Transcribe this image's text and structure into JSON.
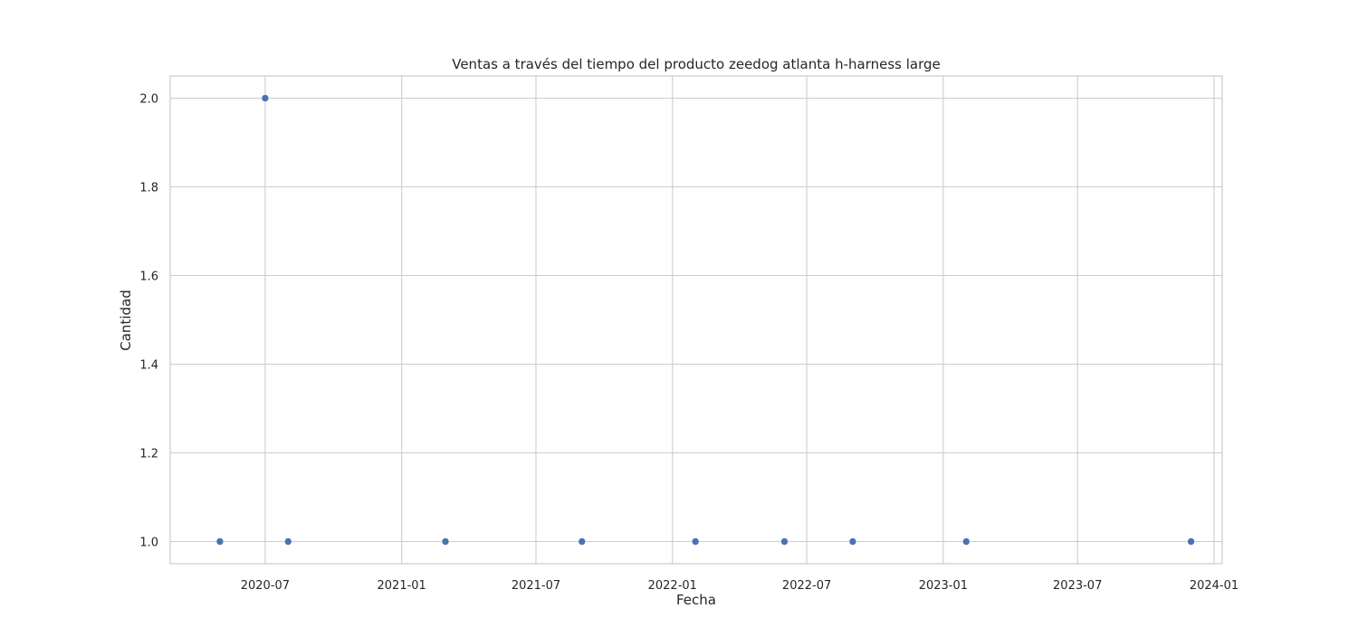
{
  "chart_data": {
    "type": "scatter",
    "title": "Ventas a través del tiempo del producto zeedog atlanta h-harness large",
    "xlabel": "Fecha",
    "ylabel": "Cantidad",
    "x_axis_type": "date",
    "xlim": [
      "2020-02-24",
      "2024-01-12"
    ],
    "ylim": [
      0.95,
      2.05
    ],
    "x_ticks": [
      "2020-07",
      "2021-01",
      "2021-07",
      "2022-01",
      "2022-07",
      "2023-01",
      "2023-07",
      "2024-01"
    ],
    "y_ticks": [
      "1.0",
      "1.2",
      "1.4",
      "1.6",
      "1.8",
      "2.0"
    ],
    "grid": true,
    "legend": "none",
    "marker_color": "#4c72b0",
    "points": [
      {
        "x": "2020-05-01",
        "y": 1
      },
      {
        "x": "2020-07-01",
        "y": 2
      },
      {
        "x": "2020-08-01",
        "y": 1
      },
      {
        "x": "2021-03-01",
        "y": 1
      },
      {
        "x": "2021-09-01",
        "y": 1
      },
      {
        "x": "2022-02-01",
        "y": 1
      },
      {
        "x": "2022-06-01",
        "y": 1
      },
      {
        "x": "2022-09-01",
        "y": 1
      },
      {
        "x": "2023-02-01",
        "y": 1
      },
      {
        "x": "2023-12-01",
        "y": 1
      }
    ]
  }
}
